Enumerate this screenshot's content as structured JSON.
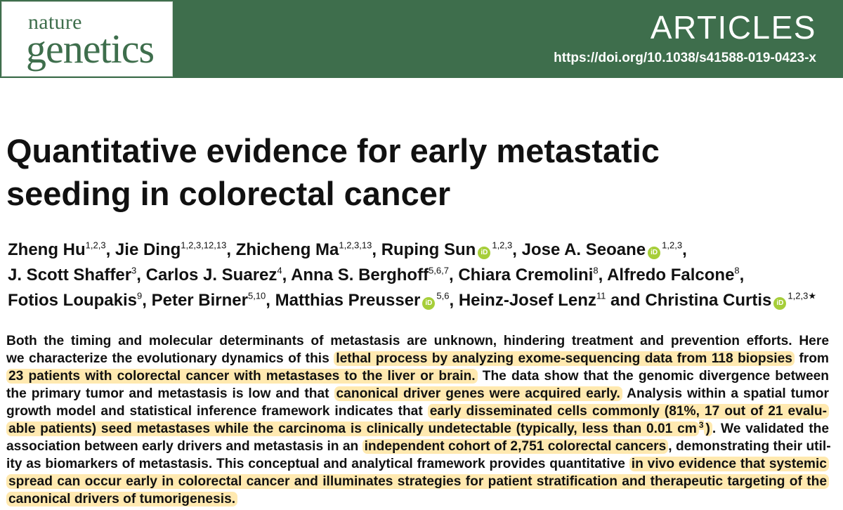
{
  "journal": {
    "name_line1": "nature",
    "name_line2": "genetics"
  },
  "header": {
    "section": "ARTICLES",
    "doi": "https://doi.org/10.1038/s41588-019-0423-x",
    "banner_color": "#3e6e4c"
  },
  "title": {
    "line1": "Quantitative evidence for early metastatic",
    "line2": "seeding in colorectal cancer"
  },
  "authors": [
    {
      "name": "Zheng Hu",
      "aff": "1,2,3",
      "orcid": false
    },
    {
      "name": "Jie Ding",
      "aff": "1,2,3,12,13",
      "orcid": false
    },
    {
      "name": "Zhicheng Ma",
      "aff": "1,2,3,13",
      "orcid": false
    },
    {
      "name": "Ruping Sun",
      "aff": "1,2,3",
      "orcid": true
    },
    {
      "name": "Jose A. Seoane",
      "aff": "1,2,3",
      "orcid": true
    },
    {
      "name": "J. Scott Shaffer",
      "aff": "3",
      "orcid": false
    },
    {
      "name": "Carlos J. Suarez",
      "aff": "4",
      "orcid": false
    },
    {
      "name": "Anna S. Berghoff",
      "aff": "5,6,7",
      "orcid": false
    },
    {
      "name": "Chiara Cremolini",
      "aff": "8",
      "orcid": false
    },
    {
      "name": "Alfredo Falcone",
      "aff": "8",
      "orcid": false
    },
    {
      "name": "Fotios Loupakis",
      "aff": "9",
      "orcid": false
    },
    {
      "name": "Peter Birner",
      "aff": "5,10",
      "orcid": false
    },
    {
      "name": "Matthias Preusser",
      "aff": "5,6",
      "orcid": true
    },
    {
      "name": "Heinz-Josef Lenz",
      "aff": "11",
      "orcid": false
    },
    {
      "name": "Christina Curtis",
      "aff": "1,2,3",
      "orcid": true,
      "corresponding": "★"
    }
  ],
  "author_separators": {
    "comma": ", ",
    "final": " and ",
    "line_breaks_after": [
      4,
      9
    ]
  },
  "orcid_label": "iD",
  "orcid_color": "#a6ce39",
  "highlight_color": "#ffe9b0",
  "abstract": [
    [
      {
        "t": "Both the timing and molecular determinants of metastasis are unknown, hindering treatment and prevention efforts. Here"
      }
    ],
    [
      {
        "t": "we characterize the evolutionary dynamics of this "
      },
      {
        "t": "lethal process by analyzing exome-sequencing data from 118 biopsies",
        "hl": true
      },
      {
        "t": " from"
      }
    ],
    [
      {
        "t": "23 patients with colorectal cancer with metastases to the liver or brain.",
        "hl": true
      },
      {
        "t": " The data show that the genomic divergence between"
      }
    ],
    [
      {
        "t": "the primary tumor and metastasis is low and that "
      },
      {
        "t": "canonical driver genes were acquired early.",
        "hl": true
      },
      {
        "t": " Analysis within a spatial tumor"
      }
    ],
    [
      {
        "t": "growth model and statistical inference framework indicates that "
      },
      {
        "t": "early disseminated cells commonly (81%, 17 out of 21 evalu-",
        "hl": true
      }
    ],
    [
      {
        "t": "able patients) seed metastases while the carcinoma is clinically undetectable (typically, less than 0.01 cm",
        "hl": true
      },
      {
        "t": "3",
        "hl": true,
        "sup": true
      },
      {
        "t": ")",
        "hl": true
      },
      {
        "t": ". We validated the"
      }
    ],
    [
      {
        "t": "association between early drivers and metastasis in an "
      },
      {
        "t": "independent cohort of 2,751 colorectal cancers",
        "hl": true
      },
      {
        "t": ", demonstrating their util-"
      }
    ],
    [
      {
        "t": "ity as biomarkers of metastasis. This conceptual and analytical framework provides quantitative "
      },
      {
        "t": "in vivo evidence that systemic",
        "hl": true
      }
    ],
    [
      {
        "t": "spread can occur early in colorectal cancer and illuminates strategies for patient stratification and therapeutic targeting of the",
        "hl": true
      }
    ],
    [
      {
        "t": "canonical drivers of tumorigenesis.",
        "hl": true
      }
    ]
  ]
}
